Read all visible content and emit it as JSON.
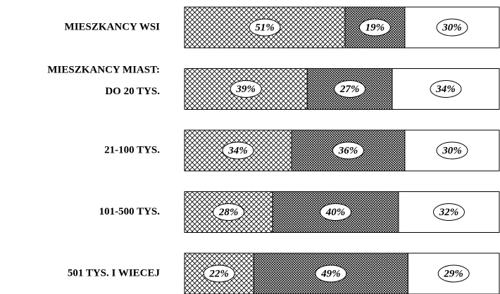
{
  "chart_data": {
    "type": "stacked-bar-horizontal",
    "group_label": "MIESZKANCY MIAST:",
    "categories": [
      "MIESZKANCY WSI",
      "DO 20 TYS.",
      "21-100 TYS.",
      "101-500 TYS.",
      "501 TYS. I WIECEJ"
    ],
    "xlim": [
      0,
      100
    ],
    "series": [
      {
        "fill": "light-hatch",
        "values": [
          51,
          39,
          34,
          28,
          22
        ],
        "value_labels": [
          "51%",
          "39%",
          "34%",
          "28%",
          "22%"
        ]
      },
      {
        "fill": "dense-hatch",
        "values": [
          19,
          27,
          36,
          40,
          49
        ],
        "value_labels": [
          "19%",
          "27%",
          "36%",
          "40%",
          "49%"
        ]
      },
      {
        "fill": "none",
        "values": [
          30,
          34,
          30,
          32,
          29
        ],
        "value_labels": [
          "30%",
          "34%",
          "30%",
          "32%",
          "29%"
        ]
      }
    ]
  }
}
